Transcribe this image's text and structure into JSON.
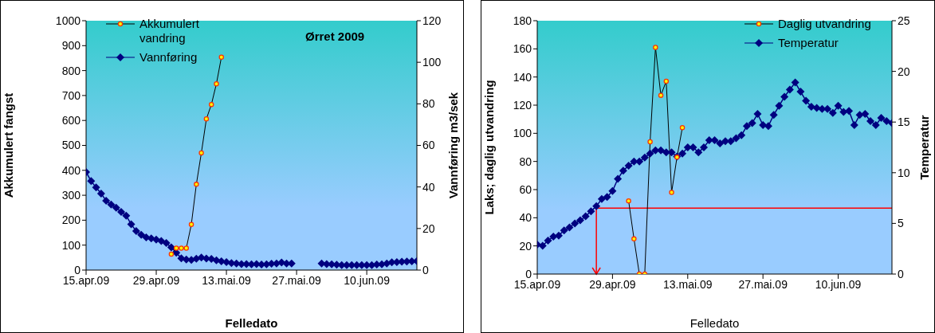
{
  "chart_data": [
    {
      "type": "line",
      "title": "Ørret 2009",
      "xlabel": "Felledato",
      "ylabel": "Akkumulert  fangst",
      "y2label": "Vannføring  m3/sek",
      "x": [
        "2009-04-15",
        "2009-04-16",
        "2009-04-17",
        "2009-04-18",
        "2009-04-19",
        "2009-04-20",
        "2009-04-21",
        "2009-04-22",
        "2009-04-23",
        "2009-04-24",
        "2009-04-25",
        "2009-04-26",
        "2009-04-27",
        "2009-04-28",
        "2009-04-29",
        "2009-04-30",
        "2009-05-01",
        "2009-05-02",
        "2009-05-03",
        "2009-05-04",
        "2009-05-05",
        "2009-05-06",
        "2009-05-07",
        "2009-05-08",
        "2009-05-09",
        "2009-05-10",
        "2009-05-11",
        "2009-05-12",
        "2009-05-13",
        "2009-05-14",
        "2009-05-15",
        "2009-05-16",
        "2009-05-17",
        "2009-05-18",
        "2009-05-19",
        "2009-05-20",
        "2009-05-21",
        "2009-05-22",
        "2009-05-23",
        "2009-05-24",
        "2009-05-25",
        "2009-05-26",
        "2009-05-27",
        "2009-05-28",
        "2009-05-29",
        "2009-05-30",
        "2009-05-31",
        "2009-06-01",
        "2009-06-02",
        "2009-06-03",
        "2009-06-04",
        "2009-06-05",
        "2009-06-06",
        "2009-06-07",
        "2009-06-08",
        "2009-06-09",
        "2009-06-10",
        "2009-06-11",
        "2009-06-12",
        "2009-06-13",
        "2009-06-14",
        "2009-06-15",
        "2009-06-16",
        "2009-06-17",
        "2009-06-18",
        "2009-06-19",
        "2009-06-20"
      ],
      "series": [
        {
          "name": "Akkumulert vandring",
          "color": "#000000",
          "marker": "circle",
          "x": [
            "2009-05-02",
            "2009-05-03",
            "2009-05-04",
            "2009-05-05",
            "2009-05-06",
            "2009-05-07",
            "2009-05-08",
            "2009-05-09",
            "2009-05-10",
            "2009-05-11",
            "2009-05-12"
          ],
          "values": [
            64,
            88,
            88,
            88,
            183,
            344,
            470,
            606,
            664,
            747,
            854
          ]
        },
        {
          "name": "Vannføring",
          "color": "#000080",
          "marker": "diamond",
          "axis": "y2",
          "values": [
            47.2,
            42.8,
            39.8,
            36.8,
            33.4,
            31.5,
            30,
            28,
            26.2,
            22,
            18.8,
            17,
            15.7,
            15.2,
            14.7,
            14,
            13,
            10.9,
            8.3,
            5.7,
            5.1,
            4.9,
            5.5,
            6,
            5.6,
            5.4,
            4.7,
            4.2,
            3.8,
            3.4,
            3.2,
            2.9,
            2.9,
            2.8,
            2.9,
            2.7,
            2.8,
            3.1,
            3.2,
            3.6,
            3.2,
            3.2,
            null,
            null,
            null,
            null,
            null,
            3.2,
            2.9,
            2.8,
            2.6,
            2.4,
            2.4,
            2.4,
            2.4,
            2.4,
            2.4,
            2.4,
            2.7,
            2.8,
            3.2,
            3.7,
            3.8,
            4.0,
            4.1,
            4.2,
            4.3
          ]
        }
      ],
      "xlim": [
        "2009-04-15",
        "2009-06-20"
      ],
      "xticks": [
        {
          "value": "2009-04-15",
          "label": "15.apr.09"
        },
        {
          "value": "2009-04-29",
          "label": "29.apr.09"
        },
        {
          "value": "2009-05-13",
          "label": "13.mai.09"
        },
        {
          "value": "2009-05-27",
          "label": "27.mai.09"
        },
        {
          "value": "2009-06-10",
          "label": "10.jun.09"
        }
      ],
      "ylim": [
        0,
        1000
      ],
      "yticks": [
        0,
        100,
        200,
        300,
        400,
        500,
        600,
        700,
        800,
        900,
        1000
      ],
      "y2lim": [
        0,
        120
      ],
      "y2ticks": [
        0,
        20,
        40,
        60,
        80,
        100,
        120
      ],
      "legend": "top left"
    },
    {
      "type": "line",
      "xlabel": "Felledato",
      "ylabel": "Laks; daglig utvandring",
      "y2label": "Temperatur",
      "x": [
        "2009-04-15",
        "2009-04-16",
        "2009-04-17",
        "2009-04-18",
        "2009-04-19",
        "2009-04-20",
        "2009-04-21",
        "2009-04-22",
        "2009-04-23",
        "2009-04-24",
        "2009-04-25",
        "2009-04-26",
        "2009-04-27",
        "2009-04-28",
        "2009-04-29",
        "2009-04-30",
        "2009-05-01",
        "2009-05-02",
        "2009-05-03",
        "2009-05-04",
        "2009-05-05",
        "2009-05-06",
        "2009-05-07",
        "2009-05-08",
        "2009-05-09",
        "2009-05-10",
        "2009-05-11",
        "2009-05-12",
        "2009-05-13",
        "2009-05-14",
        "2009-05-15",
        "2009-05-16",
        "2009-05-17",
        "2009-05-18",
        "2009-05-19",
        "2009-05-20",
        "2009-05-21",
        "2009-05-22",
        "2009-05-23",
        "2009-05-24",
        "2009-05-25",
        "2009-05-26",
        "2009-05-27",
        "2009-05-28",
        "2009-05-29",
        "2009-05-30",
        "2009-05-31",
        "2009-06-01",
        "2009-06-02",
        "2009-06-03",
        "2009-06-04",
        "2009-06-05",
        "2009-06-06",
        "2009-06-07",
        "2009-06-08",
        "2009-06-09",
        "2009-06-10",
        "2009-06-11",
        "2009-06-12",
        "2009-06-13",
        "2009-06-14",
        "2009-06-15",
        "2009-06-16",
        "2009-06-17",
        "2009-06-18",
        "2009-06-19",
        "2009-06-20"
      ],
      "series": [
        {
          "name": "Daglig utvandring",
          "color": "#000000",
          "marker": "circle",
          "x": [
            "2009-05-02",
            "2009-05-03",
            "2009-05-04",
            "2009-05-05",
            "2009-05-06",
            "2009-05-07",
            "2009-05-08",
            "2009-05-09",
            "2009-05-10",
            "2009-05-11",
            "2009-05-12"
          ],
          "values": [
            52,
            25,
            0,
            0,
            94,
            161,
            127,
            137,
            58,
            83,
            104
          ]
        },
        {
          "name": "Temperatur",
          "color": "#000080",
          "marker": "diamond",
          "axis": "y2",
          "values": [
            2.9,
            2.8,
            3.3,
            3.7,
            3.8,
            4.3,
            4.6,
            5.0,
            5.3,
            5.7,
            6.2,
            6.7,
            7.4,
            7.6,
            8.2,
            9.4,
            10.2,
            10.7,
            11.1,
            11.1,
            11.5,
            11.9,
            12.2,
            12.2,
            12.0,
            12.0,
            11.6,
            11.9,
            12.5,
            12.5,
            12.0,
            12.5,
            13.2,
            13.2,
            12.9,
            13.1,
            13.1,
            13.4,
            13.7,
            14.6,
            14.9,
            15.8,
            14.7,
            14.6,
            15.7,
            16.6,
            17.5,
            18.2,
            18.9,
            18.0,
            17.1,
            16.5,
            16.4,
            16.3,
            16.3,
            15.9,
            16.6,
            16.0,
            16.1,
            14.7,
            15.7,
            15.8,
            15.1,
            14.7,
            15.4,
            15.1,
            14.9
          ]
        }
      ],
      "xlim": [
        "2009-04-15",
        "2009-06-20"
      ],
      "xticks": [
        {
          "value": "2009-04-15",
          "label": "15.apr.09"
        },
        {
          "value": "2009-04-29",
          "label": "29.apr.09"
        },
        {
          "value": "2009-05-13",
          "label": "13.mai.09"
        },
        {
          "value": "2009-05-27",
          "label": "27.mai.09"
        },
        {
          "value": "2009-06-10",
          "label": "10.jun.09"
        }
      ],
      "ylim": [
        0,
        180
      ],
      "yticks": [
        0,
        20,
        40,
        60,
        80,
        100,
        120,
        140,
        160,
        180
      ],
      "y2lim": [
        0,
        25
      ],
      "y2ticks": [
        0,
        5,
        10,
        15,
        20,
        25
      ],
      "ref_lines": [
        {
          "axis": "y2",
          "value": 6.5,
          "color": "#ff0000"
        },
        {
          "axis": "x",
          "value": "2009-04-26",
          "color": "#ff0000"
        }
      ],
      "legend": "top right"
    }
  ]
}
